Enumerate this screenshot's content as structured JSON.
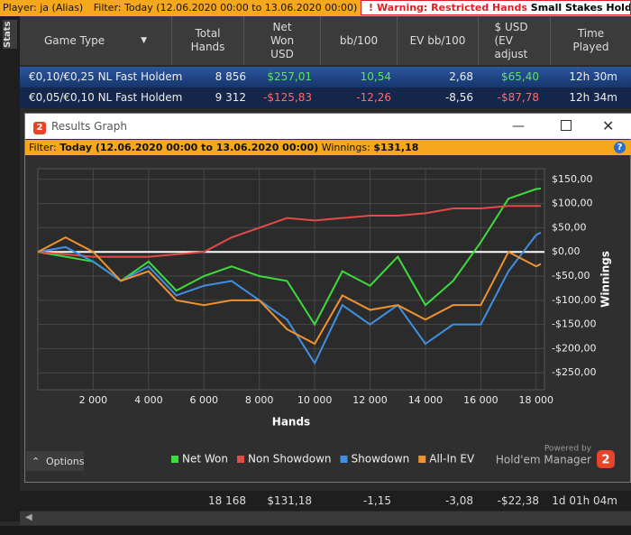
{
  "topbar": {
    "player": "Player: ja (Alias)",
    "filter": "Filter: Today (12.06.2020 00:00 to 13.06.2020 00:00)",
    "warning_icon": "!",
    "warning": "Warning: Restricted Hands",
    "warning_detail": "Small Stakes Holdem hands"
  },
  "side_tab": "Stats",
  "table": {
    "columns": [
      "Game Type",
      "Total Hands",
      "Net Won USD",
      "bb/100",
      "EV bb/100",
      "$ USD (EV adjust",
      "Time Played"
    ],
    "rows": [
      [
        "€0,10/€0,25 NL Fast Holdem",
        "8 856",
        "$257,01",
        "10,54",
        "2,68",
        "$65,40",
        "12h 30m"
      ],
      [
        "€0,05/€0,10 NL Fast Holdem",
        "9 312",
        "-$125,83",
        "-12,26",
        "-8,56",
        "-$87,78",
        "12h 34m"
      ]
    ],
    "summary": [
      "18 168",
      "$131,18",
      "-1,15",
      "-3,08",
      "-$22,38",
      "1d 01h 04m"
    ]
  },
  "window": {
    "icon": "2",
    "title": "Results Graph",
    "filter_label": "Filter:",
    "filter_value": "Today (12.06.2020 00:00 to 13.06.2020 00:00)",
    "winnings_label": "Winnings:",
    "winnings_value": "$131,18",
    "help": "?",
    "options": "Options",
    "powered_by": "Powered by",
    "brand": "Hold'em Manager",
    "brand_icon": "2"
  },
  "chart_data": {
    "type": "line",
    "x_label": "Hands",
    "y_label": "Winnings",
    "x": [
      0,
      1000,
      2000,
      3000,
      4000,
      5000,
      6000,
      7000,
      8000,
      9000,
      10000,
      11000,
      12000,
      13000,
      14000,
      15000,
      16000,
      17000,
      18000,
      18168
    ],
    "series": [
      {
        "name": "Net Won",
        "color": "#3ddc3d",
        "values": [
          0,
          -10,
          -20,
          -60,
          -20,
          -80,
          -50,
          -30,
          -50,
          -60,
          -150,
          -40,
          -70,
          -10,
          -110,
          -60,
          20,
          110,
          130,
          131
        ]
      },
      {
        "name": "Non Showdown",
        "color": "#e34a4a",
        "values": [
          0,
          -5,
          -10,
          -10,
          -10,
          -5,
          0,
          30,
          50,
          70,
          65,
          70,
          75,
          75,
          80,
          90,
          90,
          95,
          95,
          95
        ]
      },
      {
        "name": "Showdown",
        "color": "#3f8fe0",
        "values": [
          0,
          10,
          -20,
          -60,
          -30,
          -90,
          -70,
          -60,
          -100,
          -140,
          -230,
          -110,
          -150,
          -110,
          -190,
          -150,
          -150,
          -40,
          35,
          40
        ]
      },
      {
        "name": "All-In EV",
        "color": "#f0922e",
        "values": [
          0,
          30,
          0,
          -60,
          -40,
          -100,
          -110,
          -100,
          -100,
          -160,
          -190,
          -90,
          -120,
          -110,
          -140,
          -110,
          -110,
          0,
          -30,
          -25
        ]
      }
    ],
    "xlim": [
      0,
      18300
    ],
    "ylim": [
      -285,
      172
    ],
    "xticks": [
      {
        "value": 2000,
        "label": "2 000"
      },
      {
        "value": 4000,
        "label": "4 000"
      },
      {
        "value": 6000,
        "label": "6 000"
      },
      {
        "value": 8000,
        "label": "8 000"
      },
      {
        "value": 10000,
        "label": "10 000"
      },
      {
        "value": 12000,
        "label": "12 000"
      },
      {
        "value": 14000,
        "label": "14 000"
      },
      {
        "value": 16000,
        "label": "16 000"
      },
      {
        "value": 18000,
        "label": "18 000"
      }
    ],
    "yticks": [
      {
        "value": 150,
        "label": "$150,00"
      },
      {
        "value": 100,
        "label": "$100,00"
      },
      {
        "value": 50,
        "label": "$50,00"
      },
      {
        "value": 0,
        "label": "$0,00"
      },
      {
        "value": -50,
        "label": "-$50,00"
      },
      {
        "value": -100,
        "label": "-$100,00"
      },
      {
        "value": -150,
        "label": "-$150,00"
      },
      {
        "value": -200,
        "label": "-$200,00"
      },
      {
        "value": -250,
        "label": "-$250,00"
      }
    ],
    "grid": true,
    "legend": "bottom"
  }
}
